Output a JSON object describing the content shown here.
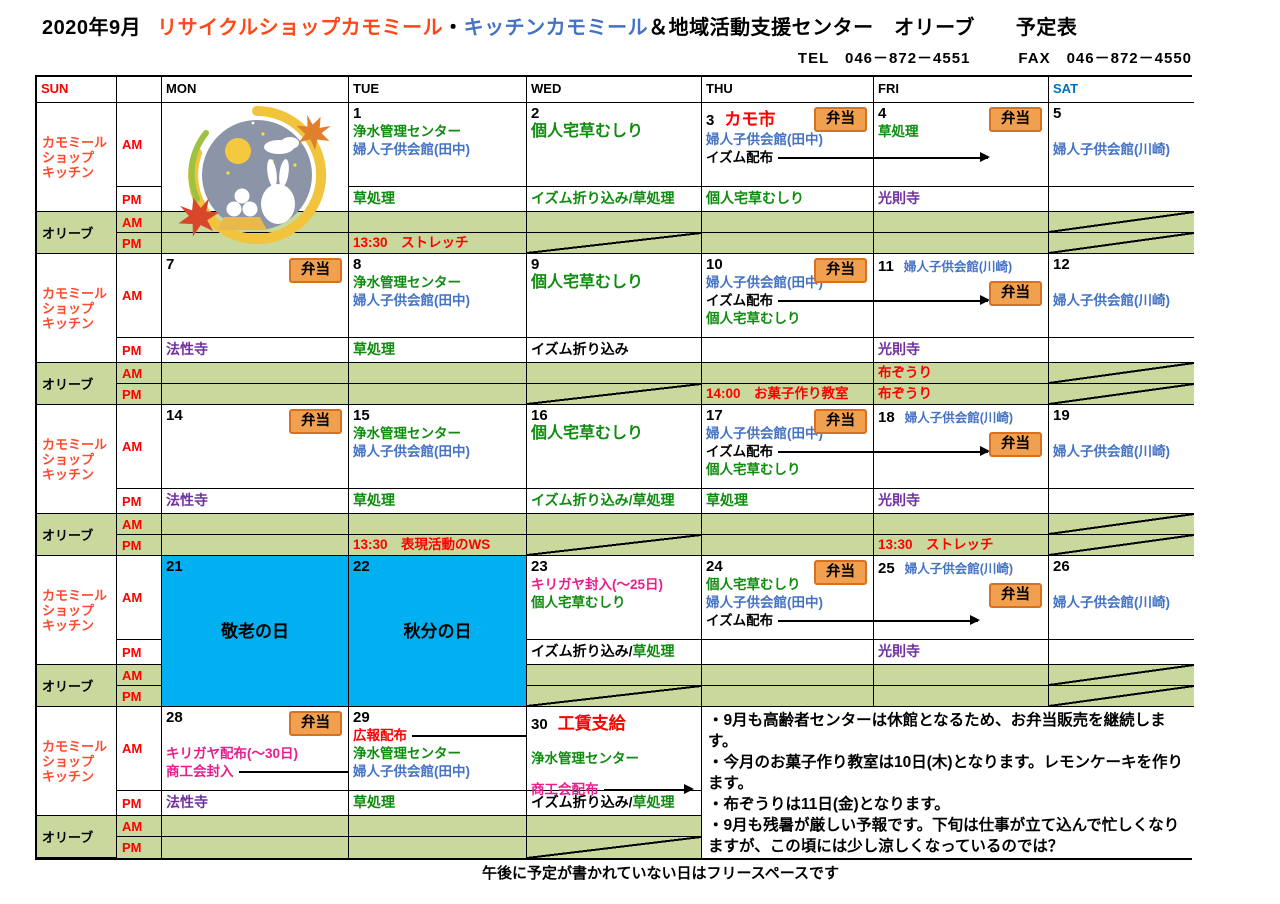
{
  "page": {
    "title": {
      "month": "2020年9月",
      "shop": "リサイクルショップカモミール",
      "sep": "・",
      "kitchen": "キッチンカモミール",
      "rest": "＆地域活動支援センター　オリーブ　　予定表"
    },
    "contact": "TEL　046－872－4551　　　FAX　046－872－4550",
    "footer_note": "午後に予定が書かれていない日はフリースペースです"
  },
  "colors": {
    "red": "#FF0000",
    "green": "#0E8C0E",
    "blue": "#4472C4",
    "purple": "#7030A0",
    "magenta": "#E91E8C",
    "black": "#000000",
    "label_orange": "#FF4A2E",
    "title_shop_red": "#FF4719",
    "title_kitchen_blue": "#4472C4",
    "sat_blue": "#0070C0",
    "holiday_bg": "#00B0F0",
    "olive_bg": "#C9D89C",
    "bento_bg": "#F0A04F",
    "bento_border": "#D8701F"
  },
  "header": {
    "days": [
      "SUN",
      "",
      "MON",
      "TUE",
      "WED",
      "THU",
      "FRI",
      "SAT"
    ]
  },
  "labels": {
    "kamomile": [
      "カモミール",
      "ショップ",
      "キッチン"
    ],
    "olive": "オリーブ",
    "am": "AM",
    "pm": "PM",
    "bento": "弁当"
  },
  "notes": [
    "・9月も高齢者センターは休館となるため、お弁当販売を継続します。",
    "・今月のお菓子作り教室は10日(木)となります。レモンケーキを作ります。",
    "・布ぞうりは11日(金)となります。",
    "・9月も残暑が厳しい予報です。下旬は仕事が立て込んで忙しくなりますが、この頃には少し涼しくなっているのでは？"
  ],
  "weeks": [
    {
      "days": {
        "mon": {
          "special": "image"
        },
        "tue": {
          "num": "1",
          "am": [
            [
              {
                "t": "浄水管理センター",
                "c": "green"
              }
            ],
            [
              {
                "t": "婦人子供会館(田中)",
                "c": "blue"
              }
            ]
          ],
          "pm": [
            [
              {
                "t": "草処理",
                "c": "green"
              }
            ]
          ],
          "olive_pm": {
            "lines": [
              [
                {
                  "t": "13:30　ストレッチ",
                  "c": "red"
                }
              ]
            ]
          }
        },
        "wed": {
          "num": "2",
          "am": [
            [
              {
                "t": "個人宅草むしり",
                "c": "green",
                "sz": 16
              }
            ]
          ],
          "pm": [
            [
              {
                "t": "イズム折り込み/草処理",
                "c": "green"
              }
            ]
          ],
          "olive_pm": {
            "diag": true
          }
        },
        "thu": {
          "num": "3",
          "title": "カモ市",
          "bento": "top",
          "am": [
            [
              {
                "t": "婦人子供会館(田中)",
                "c": "blue"
              }
            ],
            [
              {
                "t": "イズム配布",
                "c": "black",
                "arrow": 210
              }
            ]
          ],
          "pm": [
            [
              {
                "t": "個人宅草むしり",
                "c": "green"
              }
            ]
          ]
        },
        "fri": {
          "num": "4",
          "bento": "top",
          "am": [
            [
              {
                "t": "草処理",
                "c": "green"
              }
            ]
          ],
          "pm": [
            [
              {
                "t": "光則寺",
                "c": "purple"
              }
            ]
          ]
        },
        "sat": {
          "num": "5",
          "am": [
            [],
            [
              {
                "t": "婦人子供会館(川崎)",
                "c": "blue"
              }
            ]
          ],
          "olive_am": {
            "diag": true
          },
          "olive_pm": {
            "diag": true
          }
        }
      }
    },
    {
      "days": {
        "mon": {
          "num": "7",
          "bento": "top",
          "am": [],
          "pm": [
            [
              {
                "t": "法性寺",
                "c": "purple"
              }
            ]
          ]
        },
        "tue": {
          "num": "8",
          "am": [
            [
              {
                "t": "浄水管理センター",
                "c": "green"
              }
            ],
            [
              {
                "t": "婦人子供会館(田中)",
                "c": "blue"
              }
            ]
          ],
          "pm": [
            [
              {
                "t": "草処理",
                "c": "green"
              }
            ]
          ]
        },
        "wed": {
          "num": "9",
          "am": [
            [
              {
                "t": "個人宅草むしり",
                "c": "green",
                "sz": 16
              }
            ]
          ],
          "pm": [
            [
              {
                "t": "イズム折り込み",
                "c": "black"
              }
            ]
          ],
          "olive_pm": {
            "diag": true
          }
        },
        "thu": {
          "num": "10",
          "bento": "top",
          "am": [
            [
              {
                "t": "婦人子供会館(田中)",
                "c": "blue"
              }
            ],
            [
              {
                "t": "イズム配布",
                "c": "black",
                "arrow": 210
              }
            ],
            [
              {
                "t": "個人宅草むしり",
                "c": "green"
              }
            ]
          ],
          "pm": [],
          "olive_pm": {
            "lines": [
              [
                {
                  "t": "14:00　お菓子作り教室",
                  "c": "red"
                }
              ]
            ]
          }
        },
        "fri": {
          "num": "11",
          "side": "婦人子供会館(川崎)",
          "bento": "second",
          "am": [],
          "pm": [
            [
              {
                "t": "光則寺",
                "c": "purple"
              }
            ]
          ],
          "olive_am": {
            "lines": [
              [
                {
                  "t": "布ぞうり",
                  "c": "red"
                }
              ]
            ]
          },
          "olive_pm": {
            "lines": [
              [
                {
                  "t": "布ぞうり",
                  "c": "red"
                }
              ]
            ]
          }
        },
        "sat": {
          "num": "12",
          "am": [
            [],
            [
              {
                "t": "婦人子供会館(川崎)",
                "c": "blue"
              }
            ]
          ],
          "olive_am": {
            "diag": true
          },
          "olive_pm": {
            "diag": true
          }
        }
      }
    },
    {
      "days": {
        "mon": {
          "num": "14",
          "bento": "top",
          "am": [],
          "pm": [
            [
              {
                "t": "法性寺",
                "c": "purple"
              }
            ]
          ]
        },
        "tue": {
          "num": "15",
          "am": [
            [
              {
                "t": "浄水管理センター",
                "c": "green"
              }
            ],
            [
              {
                "t": "婦人子供会館(田中)",
                "c": "blue"
              }
            ]
          ],
          "pm": [
            [
              {
                "t": "草処理",
                "c": "green"
              }
            ]
          ],
          "olive_pm": {
            "lines": [
              [
                {
                  "t": "13:30　表現活動のWS",
                  "c": "red"
                }
              ]
            ]
          }
        },
        "wed": {
          "num": "16",
          "am": [
            [
              {
                "t": "個人宅草むしり",
                "c": "green",
                "sz": 16
              }
            ]
          ],
          "pm": [
            [
              {
                "t": "イズム折り込み/草処理",
                "c": "green"
              }
            ]
          ],
          "olive_pm": {
            "diag": true
          }
        },
        "thu": {
          "num": "17",
          "bento": "top",
          "am": [
            [
              {
                "t": "婦人子供会館(田中)",
                "c": "blue"
              }
            ],
            [
              {
                "t": "イズム配布",
                "c": "black",
                "arrow": 210
              }
            ],
            [
              {
                "t": "個人宅草むしり",
                "c": "green"
              }
            ]
          ],
          "pm": [
            [
              {
                "t": "草処理",
                "c": "green"
              }
            ]
          ]
        },
        "fri": {
          "num": "18",
          "side": "婦人子供会館(川崎)",
          "bento": "second",
          "am": [],
          "pm": [
            [
              {
                "t": "光則寺",
                "c": "purple"
              }
            ]
          ],
          "olive_pm": {
            "lines": [
              [
                {
                  "t": "13:30　ストレッチ",
                  "c": "red"
                }
              ]
            ]
          }
        },
        "sat": {
          "num": "19",
          "am": [
            [],
            [
              {
                "t": "婦人子供会館(川崎)",
                "c": "blue"
              }
            ]
          ],
          "olive_am": {
            "diag": true
          },
          "olive_pm": {
            "diag": true
          }
        }
      }
    },
    {
      "days": {
        "mon": {
          "num": "21",
          "holiday": "敬老の日"
        },
        "tue": {
          "num": "22",
          "holiday": "秋分の日"
        },
        "wed": {
          "num": "23",
          "am": [
            [
              {
                "t": "キリガヤ封入(～25日)",
                "c": "magenta"
              }
            ],
            [
              {
                "t": "個人宅草むしり",
                "c": "green"
              }
            ]
          ],
          "pm": [
            [
              {
                "t": "イズム折り込み/",
                "c": "black"
              },
              {
                "t": "草処理",
                "c": "green"
              }
            ]
          ],
          "olive_pm": {
            "diag": true
          }
        },
        "thu": {
          "num": "24",
          "bento": "top",
          "am": [
            [
              {
                "t": "個人宅草むしり",
                "c": "green"
              }
            ],
            [
              {
                "t": "婦人子供会館(田中)",
                "c": "blue"
              }
            ],
            [
              {
                "t": "イズム配布",
                "c": "black",
                "arrow": 200
              }
            ]
          ],
          "pm": []
        },
        "fri": {
          "num": "25",
          "side": "婦人子供会館(川崎)",
          "bento": "second",
          "am": [],
          "pm": [
            [
              {
                "t": "光則寺",
                "c": "purple"
              }
            ]
          ]
        },
        "sat": {
          "num": "26",
          "am": [
            [],
            [
              {
                "t": "婦人子供会館(川崎)",
                "c": "blue"
              }
            ]
          ],
          "olive_am": {
            "diag": true
          },
          "olive_pm": {
            "diag": true
          }
        }
      }
    },
    {
      "days": {
        "mon": {
          "num": "28",
          "bento": "top",
          "am": [
            [],
            [
              {
                "t": "キリガヤ配布(～30日)",
                "c": "magenta"
              }
            ],
            [
              {
                "t": "商工会封入",
                "c": "magenta",
                "arrow": 260
              }
            ]
          ],
          "pm": [
            [
              {
                "t": "法性寺",
                "c": "purple"
              }
            ]
          ]
        },
        "tue": {
          "num": "29",
          "am": [
            [
              {
                "t": "広報配布",
                "c": "red",
                "arrow": 225
              }
            ],
            [
              {
                "t": "浄水管理センター",
                "c": "green"
              }
            ],
            [
              {
                "t": "婦人子供会館(田中)",
                "c": "blue"
              }
            ]
          ],
          "pm": [
            [
              {
                "t": "草処理",
                "c": "green"
              }
            ]
          ]
        },
        "wed": {
          "num": "30",
          "title": "工賃支給",
          "am": [
            [],
            [
              {
                "t": "浄水管理センター",
                "c": "green"
              }
            ],
            [],
            [
              {
                "t": "商工会配布",
                "c": "magenta",
                "arrow": 88
              }
            ]
          ],
          "pm": [
            [
              {
                "t": "イズム折り込み/",
                "c": "black"
              },
              {
                "t": "草処理",
                "c": "green"
              }
            ]
          ],
          "olive_pm": {
            "diag": true
          }
        },
        "thu": {
          "notes": true
        }
      }
    }
  ]
}
